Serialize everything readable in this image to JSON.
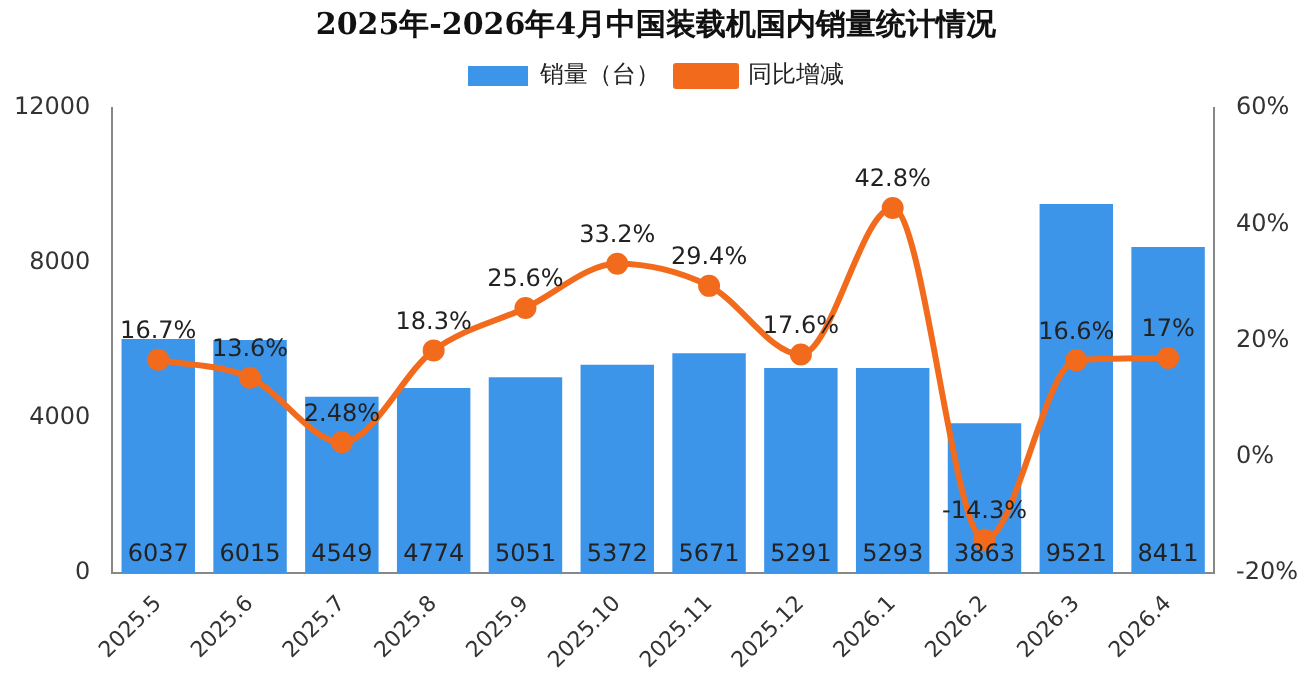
{
  "chart_data": {
    "type": "bar",
    "title": "2025年-2026年4月中国装载机国内销量统计情况",
    "categories": [
      "2025.5",
      "2025.6",
      "2025.7",
      "2025.8",
      "2025.9",
      "2025.10",
      "2025.11",
      "2025.12",
      "2026.1",
      "2026.2",
      "2026.3",
      "2026.4"
    ],
    "series": [
      {
        "name": "销量（台）",
        "color": "#3d95ea",
        "values": [
          6037,
          6015,
          4549,
          4774,
          5051,
          5372,
          5671,
          5291,
          5293,
          3863,
          9521,
          8411
        ],
        "value_labels": [
          "6037",
          "6015",
          "4549",
          "4774",
          "5051",
          "5372",
          "5671",
          "5291",
          "5293",
          "3863",
          "9521",
          "8411"
        ]
      },
      {
        "name": "同比增减",
        "type": "line",
        "axis": "y2",
        "color": "#f26b1d",
        "marker": "circle",
        "values": [
          16.7,
          13.6,
          2.48,
          18.3,
          25.6,
          33.2,
          29.4,
          17.6,
          42.8,
          -14.3,
          16.6,
          17
        ],
        "value_labels": [
          "16.7%",
          "13.6%",
          "2.48%",
          "18.3%",
          "25.6%",
          "33.2%",
          "29.4%",
          "17.6%",
          "42.8%",
          "-14.3%",
          "16.6%",
          "17%"
        ]
      }
    ],
    "ylim": [
      0,
      12000
    ],
    "yticks": [
      0,
      4000,
      8000,
      12000
    ],
    "y2lim": [
      -20,
      60
    ],
    "y2ticks": [
      {
        "value": -20,
        "label": "-20%"
      },
      {
        "value": 0,
        "label": "0%"
      },
      {
        "value": 20,
        "label": "20%"
      },
      {
        "value": 40,
        "label": "40%"
      },
      {
        "value": 60,
        "label": "60%"
      }
    ],
    "legend": "top",
    "grid": false
  }
}
